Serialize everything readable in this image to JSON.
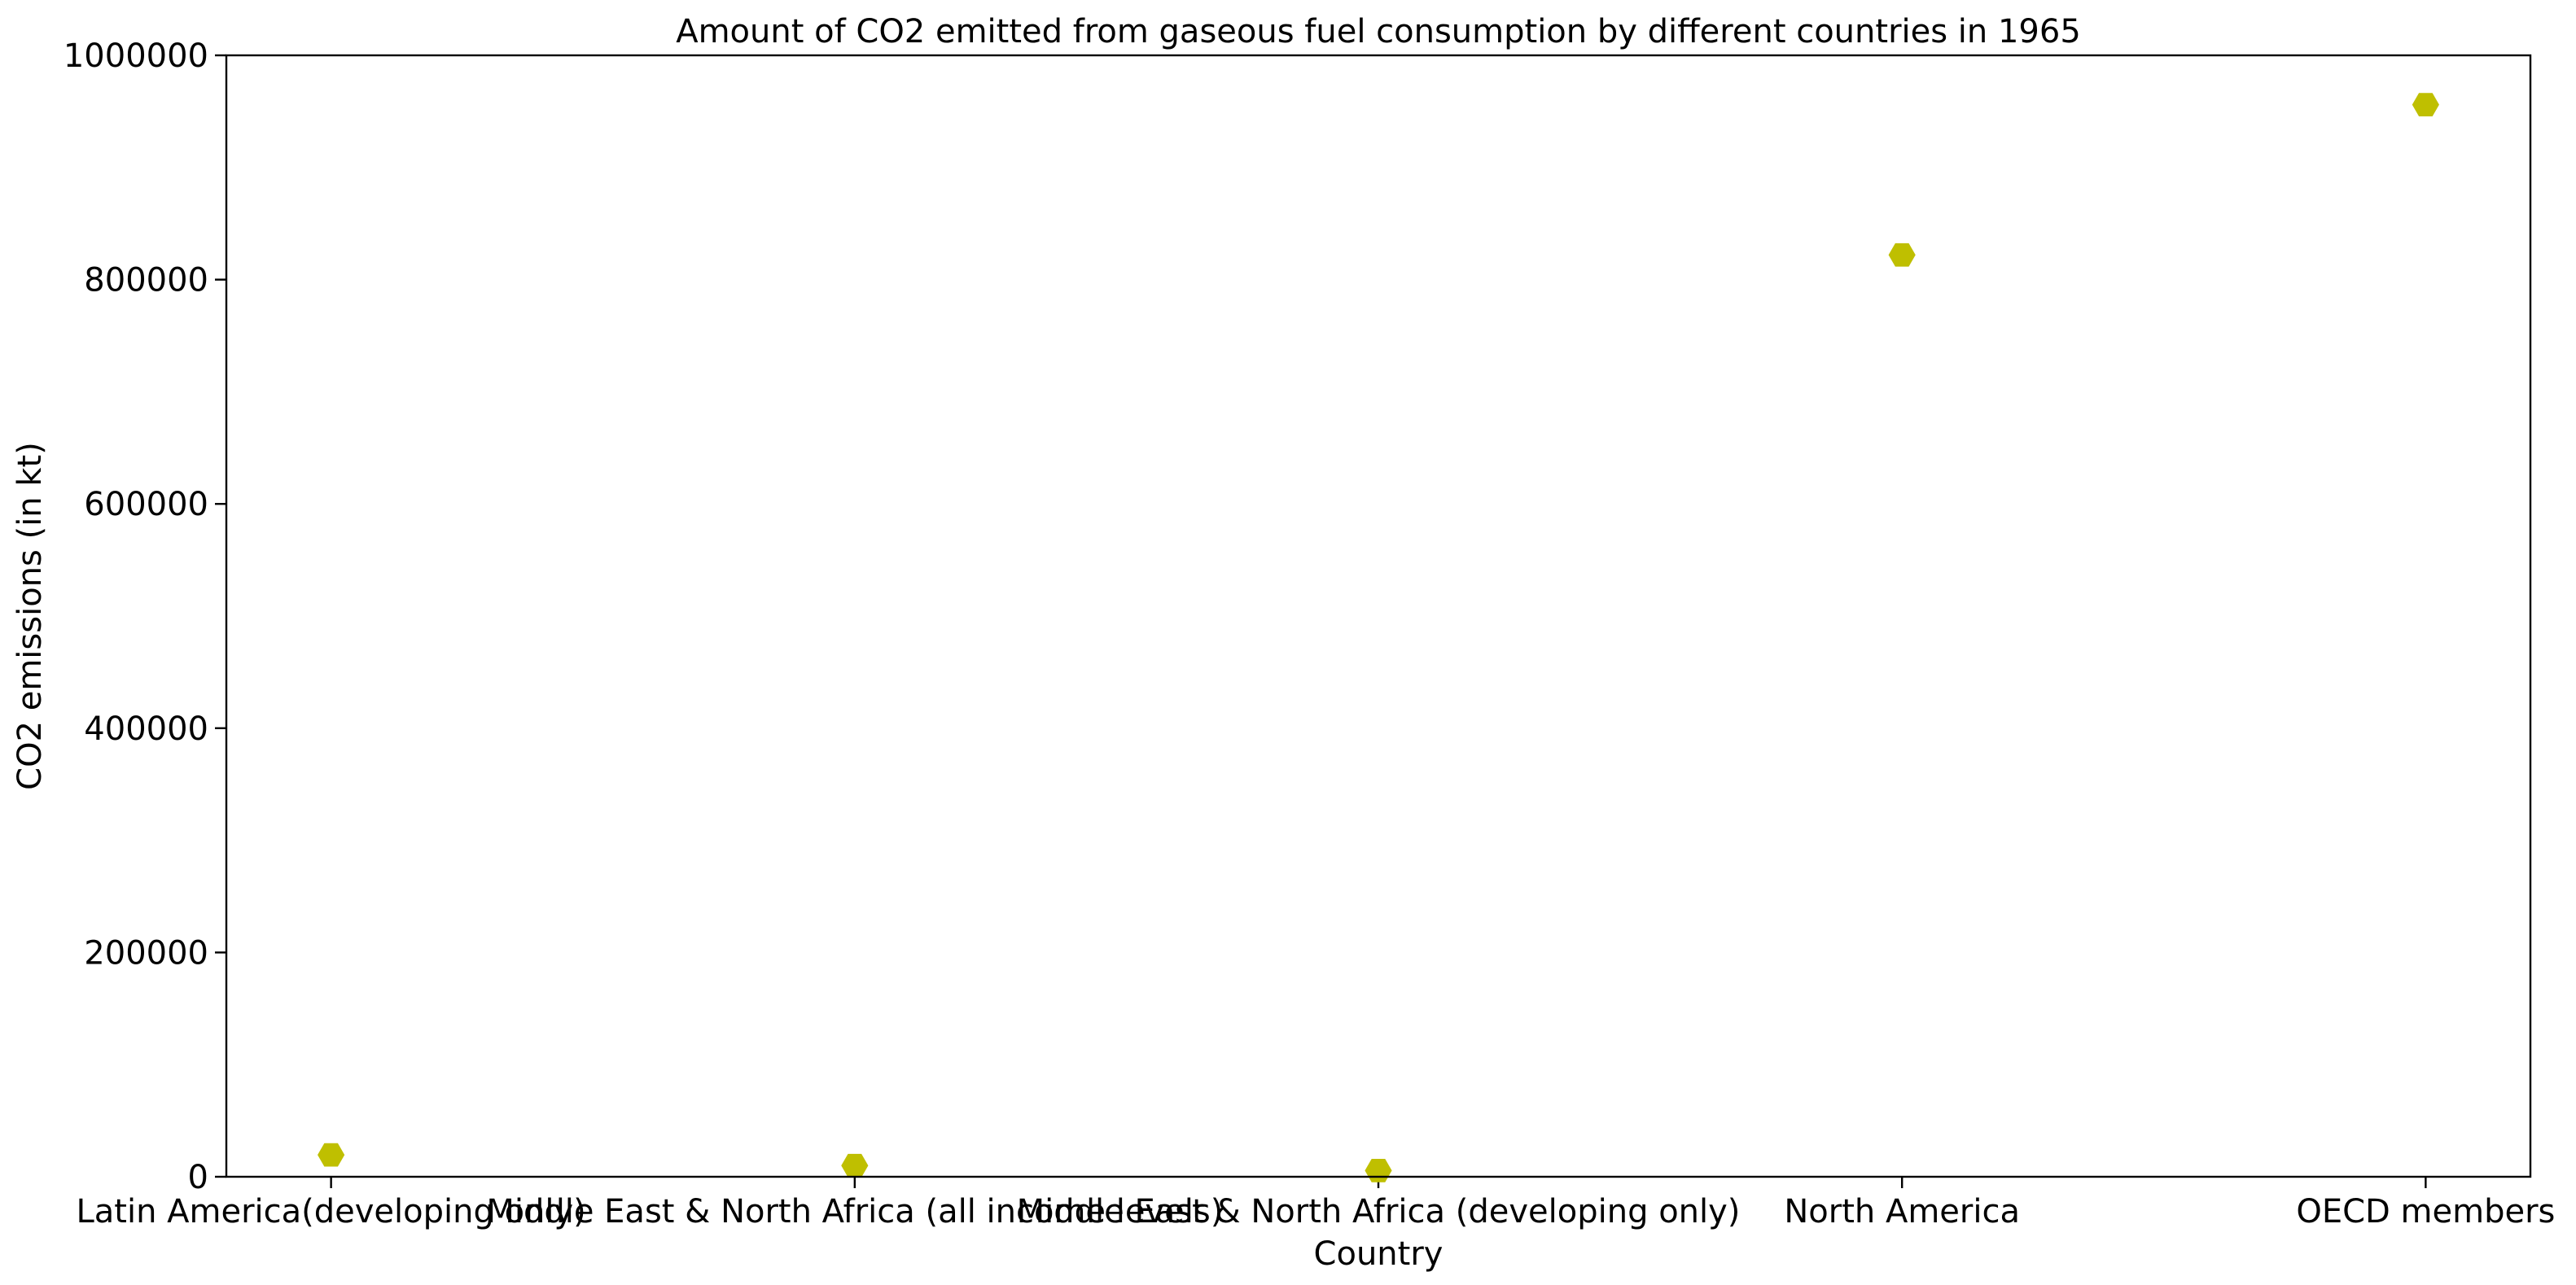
{
  "chart_data": {
    "type": "scatter",
    "title": "Amount of CO2 emitted from gaseous fuel consumption by different countries in 1965",
    "xlabel": "Country",
    "ylabel": "CO2 emissions (in kt)",
    "categories": [
      "Latin America(developing only)",
      "Middle East & North Africa (all income levels)",
      "Middle East & North Africa (developing only)",
      "North America",
      "OECD members"
    ],
    "values": [
      19500,
      10000,
      5500,
      822000,
      956000
    ],
    "ylim": [
      0,
      1000000
    ],
    "yticks": [
      0,
      200000,
      400000,
      600000,
      800000,
      1000000
    ],
    "ytick_labels": [
      "0",
      "200000",
      "400000",
      "600000",
      "800000",
      "1000000"
    ],
    "marker": "hexagon",
    "marker_color": "#bfbf00",
    "grid": false,
    "legend": "none"
  }
}
